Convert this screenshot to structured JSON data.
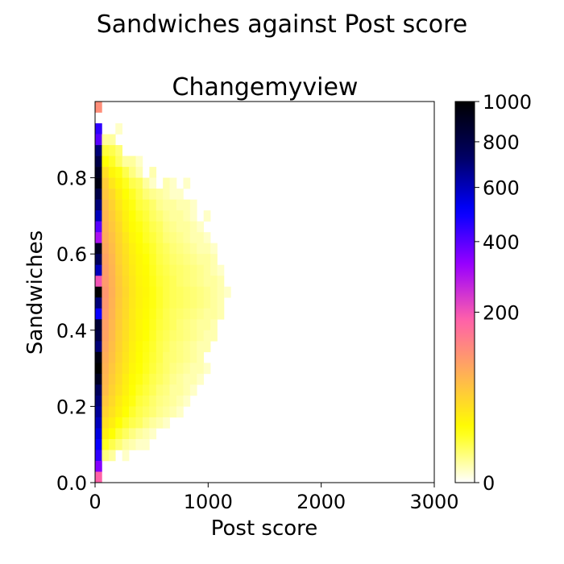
{
  "chart_data": {
    "type": "heatmap",
    "suptitle": "Sandwiches against Post score",
    "title": "Changemyview",
    "xlabel": "Post score",
    "ylabel": "Sandwiches",
    "xlim": [
      0,
      3000
    ],
    "ylim": [
      0,
      1
    ],
    "x_ticks": [
      0,
      1000,
      2000,
      3000
    ],
    "x_tick_labels": [
      "0",
      "1000",
      "2000",
      "3000"
    ],
    "y_ticks": [
      0.0,
      0.2,
      0.4,
      0.6,
      0.8
    ],
    "y_tick_labels": [
      "0.0",
      "0.2",
      "0.4",
      "0.6",
      "0.8"
    ],
    "grid": false,
    "bin_width_x": 60,
    "bin_height_y": 0.02857,
    "y_bin_centers": [
      0.014,
      0.043,
      0.071,
      0.1,
      0.129,
      0.157,
      0.186,
      0.214,
      0.243,
      0.271,
      0.3,
      0.329,
      0.357,
      0.386,
      0.414,
      0.443,
      0.471,
      0.5,
      0.529,
      0.557,
      0.586,
      0.614,
      0.643,
      0.671,
      0.7,
      0.729,
      0.757,
      0.786,
      0.814,
      0.843,
      0.871,
      0.9,
      0.929,
      0.957,
      0.986
    ],
    "counts_note": "rows ordered from top (y≈0.986) to bottom (y≈0.014); columns are x bins of width 60 starting at 0",
    "counts": [
      [
        120
      ],
      [
        0,
        0,
        0,
        0,
        0,
        0,
        0,
        0
      ],
      [
        450,
        0,
        0,
        1,
        0,
        0,
        0,
        0,
        0,
        0,
        0,
        0,
        0,
        0,
        0,
        0,
        0,
        0,
        0,
        0,
        0,
        0,
        0,
        0,
        0,
        0,
        0,
        0,
        0,
        0
      ],
      [
        400,
        3,
        3,
        0,
        0,
        0,
        0,
        0,
        0,
        0,
        0,
        0,
        0,
        0,
        0,
        0,
        0,
        0,
        0,
        0,
        0,
        0,
        0,
        0,
        0,
        0,
        0,
        0,
        0,
        0
      ],
      [
        700,
        12,
        10,
        6,
        0,
        0,
        0,
        0,
        0,
        0,
        0,
        0,
        0,
        0,
        0,
        0,
        0,
        0,
        0,
        0,
        0,
        0,
        0,
        0,
        0,
        0,
        0,
        0,
        0,
        0
      ],
      [
        800,
        20,
        15,
        8,
        3,
        3,
        1,
        0,
        0,
        0,
        0,
        0,
        0,
        0,
        0,
        0,
        0,
        0,
        0,
        0,
        0,
        0,
        0,
        0,
        0,
        0,
        0,
        0,
        0,
        0
      ],
      [
        900,
        40,
        25,
        18,
        10,
        5,
        2,
        0,
        2,
        0,
        0,
        0,
        0,
        0,
        0,
        0,
        0,
        0,
        0,
        0,
        0,
        0,
        0,
        0,
        0,
        0,
        0,
        0,
        0,
        0
      ],
      [
        950,
        55,
        35,
        25,
        16,
        10,
        8,
        3,
        1,
        0,
        2,
        1,
        0,
        1,
        0,
        0,
        0,
        0,
        0,
        0,
        0,
        0,
        0,
        0,
        0,
        0,
        0,
        0,
        0,
        0
      ],
      [
        800,
        60,
        45,
        30,
        20,
        15,
        10,
        6,
        4,
        3,
        2,
        1,
        1,
        0,
        0,
        0,
        0,
        0,
        0,
        0,
        0,
        0,
        0,
        0,
        0,
        0,
        0,
        0,
        0,
        0
      ],
      [
        700,
        70,
        50,
        35,
        25,
        18,
        12,
        10,
        7,
        4,
        3,
        3,
        2,
        2,
        1,
        0,
        0,
        0,
        0,
        0,
        0,
        0,
        0,
        0,
        0,
        0,
        0,
        0,
        0,
        0
      ],
      [
        600,
        75,
        55,
        40,
        28,
        20,
        15,
        12,
        8,
        6,
        4,
        3,
        3,
        2,
        1,
        0,
        1,
        0,
        0,
        0,
        0,
        0,
        0,
        0,
        0,
        0,
        0,
        0,
        0,
        0
      ],
      [
        400,
        80,
        60,
        45,
        30,
        22,
        18,
        14,
        10,
        8,
        5,
        4,
        3,
        3,
        2,
        1,
        0,
        0,
        0,
        0,
        0,
        0,
        0,
        0,
        0,
        0,
        0,
        0,
        0,
        0
      ],
      [
        300,
        85,
        65,
        48,
        35,
        25,
        20,
        15,
        12,
        9,
        6,
        5,
        4,
        3,
        2,
        2,
        1,
        0,
        0,
        0,
        0,
        0,
        0,
        0,
        0,
        0,
        0,
        0,
        0,
        0
      ],
      [
        900,
        90,
        70,
        50,
        38,
        28,
        22,
        18,
        14,
        10,
        8,
        6,
        5,
        4,
        3,
        2,
        2,
        1,
        0,
        0,
        0,
        0,
        0,
        0,
        0,
        0,
        0,
        0,
        0,
        0
      ],
      [
        750,
        95,
        75,
        52,
        40,
        30,
        24,
        20,
        15,
        11,
        9,
        7,
        6,
        5,
        4,
        3,
        3,
        2,
        0,
        0,
        0,
        0,
        0,
        0,
        0,
        0,
        0,
        0,
        0,
        0
      ],
      [
        600,
        100,
        78,
        55,
        42,
        32,
        25,
        22,
        16,
        12,
        10,
        8,
        7,
        6,
        5,
        4,
        3,
        2,
        1,
        0,
        0,
        0,
        0,
        0,
        0,
        0,
        0,
        0,
        0,
        0
      ],
      [
        200,
        105,
        80,
        58,
        44,
        34,
        26,
        23,
        17,
        13,
        11,
        9,
        7,
        6,
        5,
        4,
        3,
        3,
        2,
        0,
        0,
        0,
        0,
        0,
        0,
        0,
        0,
        0,
        0,
        0
      ],
      [
        1000,
        110,
        82,
        60,
        46,
        35,
        27,
        24,
        18,
        14,
        11,
        9,
        8,
        7,
        6,
        5,
        4,
        3,
        2,
        1,
        0,
        0,
        0,
        0,
        0,
        0,
        0,
        0,
        0,
        0
      ],
      [
        700,
        108,
        80,
        58,
        45,
        34,
        27,
        23,
        18,
        14,
        11,
        9,
        8,
        7,
        6,
        5,
        4,
        3,
        2,
        0,
        0,
        0,
        0,
        0,
        0,
        0,
        0,
        0,
        0,
        0
      ],
      [
        500,
        105,
        78,
        56,
        44,
        33,
        26,
        22,
        17,
        13,
        10,
        8,
        7,
        6,
        5,
        4,
        3,
        3,
        2,
        0,
        0,
        0,
        0,
        0,
        0,
        0,
        0,
        0,
        0,
        0
      ],
      [
        850,
        100,
        75,
        55,
        42,
        32,
        25,
        21,
        16,
        12,
        10,
        8,
        6,
        5,
        4,
        3,
        3,
        2,
        0,
        0,
        0,
        0,
        0,
        0,
        0,
        0,
        0,
        0,
        0,
        0
      ],
      [
        800,
        95,
        72,
        52,
        40,
        30,
        24,
        20,
        15,
        11,
        9,
        7,
        6,
        5,
        4,
        3,
        2,
        2,
        0,
        0,
        0,
        0,
        0,
        0,
        0,
        0,
        0,
        0,
        0,
        0
      ],
      [
        700,
        90,
        68,
        50,
        38,
        28,
        22,
        18,
        14,
        10,
        8,
        6,
        5,
        4,
        3,
        2,
        2,
        0,
        0,
        0,
        0,
        0,
        0,
        0,
        0,
        0,
        0,
        0,
        0,
        0
      ],
      [
        950,
        85,
        65,
        48,
        36,
        27,
        21,
        17,
        13,
        10,
        7,
        6,
        5,
        4,
        3,
        2,
        0,
        0,
        0,
        0,
        0,
        0,
        0,
        0,
        0,
        0,
        0,
        0,
        0,
        0
      ],
      [
        1000,
        80,
        60,
        45,
        34,
        25,
        20,
        16,
        12,
        9,
        7,
        5,
        4,
        3,
        2,
        2,
        1,
        0,
        0,
        0,
        0,
        0,
        0,
        0,
        0,
        0,
        0,
        0,
        0,
        0
      ],
      [
        900,
        75,
        55,
        42,
        30,
        22,
        18,
        14,
        10,
        8,
        6,
        4,
        3,
        2,
        2,
        1,
        0,
        0,
        0,
        0,
        0,
        0,
        0,
        0,
        0,
        0,
        0,
        0,
        0,
        0
      ],
      [
        750,
        70,
        50,
        38,
        28,
        20,
        15,
        12,
        9,
        6,
        5,
        3,
        3,
        2,
        1,
        0,
        0,
        0,
        0,
        0,
        0,
        0,
        0,
        0,
        0,
        0,
        0,
        0,
        0,
        0
      ],
      [
        700,
        60,
        45,
        32,
        24,
        18,
        12,
        10,
        7,
        5,
        4,
        3,
        2,
        1,
        0,
        0,
        0,
        0,
        0,
        0,
        0,
        0,
        0,
        0,
        0,
        0,
        0,
        0,
        0,
        0
      ],
      [
        650,
        50,
        38,
        28,
        20,
        14,
        10,
        8,
        6,
        4,
        3,
        2,
        1,
        0,
        0,
        0,
        0,
        0,
        0,
        0,
        0,
        0,
        0,
        0,
        0,
        0,
        0,
        0,
        0,
        0
      ],
      [
        600,
        40,
        30,
        20,
        14,
        10,
        8,
        5,
        3,
        2,
        1,
        0,
        0,
        0,
        0,
        0,
        0,
        0,
        0,
        0,
        0,
        0,
        0,
        0,
        0,
        0,
        0,
        0,
        0,
        0
      ],
      [
        550,
        30,
        20,
        12,
        8,
        5,
        3,
        2,
        1,
        0,
        0,
        0,
        0,
        0,
        0,
        0,
        0,
        0,
        0,
        0,
        0,
        0,
        0,
        0,
        0,
        0,
        0,
        0,
        0,
        0
      ],
      [
        500,
        15,
        10,
        6,
        3,
        2,
        1,
        1,
        0,
        0,
        0,
        0,
        0,
        0,
        0,
        0,
        0,
        0,
        0,
        0,
        0,
        0,
        0,
        0,
        0,
        0,
        0,
        0,
        0,
        0
      ],
      [
        450,
        5,
        3,
        0,
        1,
        0,
        0,
        0,
        0,
        0,
        0,
        0,
        0,
        0,
        0,
        0,
        0,
        0,
        0,
        0,
        0,
        0,
        0,
        0,
        0,
        0,
        0,
        0,
        0,
        0
      ],
      [
        350,
        0,
        0,
        0,
        0,
        0,
        0,
        0,
        0,
        0,
        0,
        0,
        0,
        0,
        0,
        0,
        0,
        0,
        0,
        0,
        0,
        0,
        0,
        0,
        0,
        0,
        0,
        0,
        0,
        0
      ],
      [
        180,
        0,
        0,
        0,
        0,
        0,
        0,
        0,
        0,
        0,
        0,
        0,
        0,
        0,
        0,
        0,
        0,
        0,
        0,
        0,
        0,
        0,
        0,
        0,
        0,
        0,
        0,
        0,
        0,
        0
      ]
    ],
    "colorbar": {
      "scale": "power",
      "gamma": 0.5,
      "vmin": 0,
      "vmax": 1000,
      "ticks": [
        0,
        200,
        400,
        600,
        800,
        1000
      ],
      "tick_labels": [
        "0",
        "200",
        "400",
        "600",
        "800",
        "1000"
      ],
      "colormap": "gnuplot2_r",
      "stops": [
        "#ffffff",
        "#ffff00",
        "#ffb055",
        "#ff60aa",
        "#9a00ff",
        "#0000ff",
        "#000060",
        "#000000"
      ]
    }
  }
}
